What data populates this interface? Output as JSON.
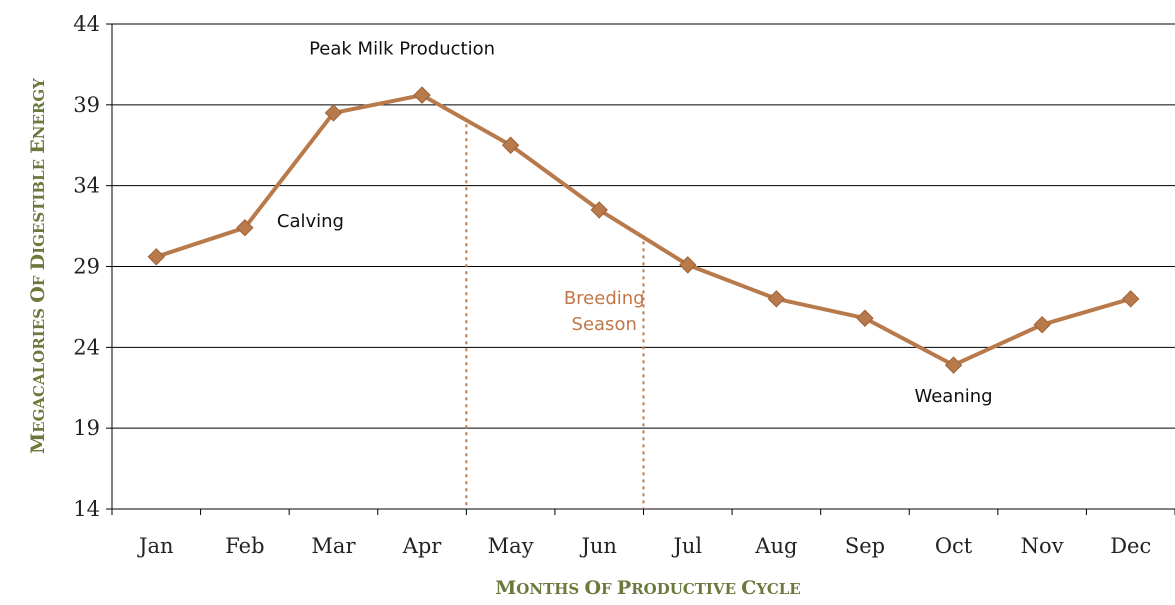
{
  "chart_data": {
    "type": "line",
    "title": "",
    "xlabel_parts": [
      {
        "text": "M",
        "big": true
      },
      {
        "text": "ONTHS ",
        "big": false
      },
      {
        "text": "O",
        "big": true
      },
      {
        "text": "F ",
        "big": false
      },
      {
        "text": "P",
        "big": true
      },
      {
        "text": "RODUCTIVE ",
        "big": false
      },
      {
        "text": "C",
        "big": true
      },
      {
        "text": "YCLE",
        "big": false
      }
    ],
    "ylabel_parts": [
      {
        "text": "M",
        "big": true
      },
      {
        "text": "EGACALORIES ",
        "big": false
      },
      {
        "text": "O",
        "big": true
      },
      {
        "text": "F ",
        "big": false
      },
      {
        "text": "D",
        "big": true
      },
      {
        "text": "IGESTIBLE ",
        "big": false
      },
      {
        "text": "E",
        "big": true
      },
      {
        "text": "NERGY",
        "big": false
      }
    ],
    "categories": [
      "Jan",
      "Feb",
      "Mar",
      "Apr",
      "May",
      "Jun",
      "Jul",
      "Aug",
      "Sep",
      "Oct",
      "Nov",
      "Dec"
    ],
    "series": [
      {
        "values": [
          29.6,
          31.4,
          38.5,
          39.6,
          36.5,
          32.5,
          29.1,
          27.0,
          25.8,
          22.9,
          25.4,
          27.0
        ]
      }
    ],
    "ylim": [
      14,
      44
    ],
    "yticks": [
      14,
      19,
      24,
      29,
      34,
      39,
      44
    ],
    "grid": true,
    "annotations": [
      {
        "text": "Peak Milk Production",
        "category": "Apr",
        "value": 42.5
      },
      {
        "text": "Calving",
        "category": "Feb",
        "value": 31.8
      },
      {
        "text": "Weaning",
        "category": "Oct",
        "value": 21.0
      }
    ],
    "breeding_season": {
      "label_lines": [
        "Breeding",
        "Season"
      ],
      "start": "Apr",
      "end": "Jun"
    },
    "colors": {
      "line": "#b87a4b",
      "marker": "#b87a4b",
      "axis_title": "#6b7a3c",
      "breeding": "#c0784a",
      "grid": "#000000"
    }
  }
}
